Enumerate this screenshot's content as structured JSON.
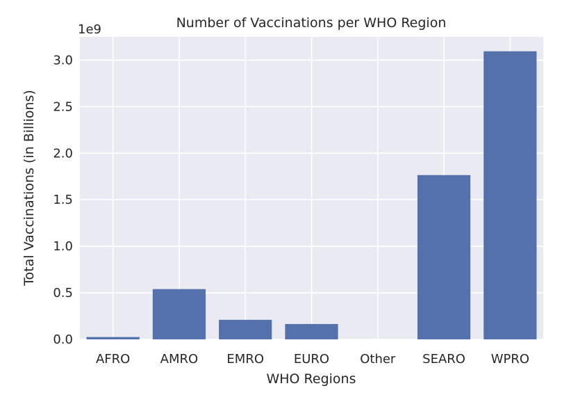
{
  "chart_data": {
    "type": "bar",
    "title": "Number of Vaccinations per WHO Region",
    "xlabel": "WHO Regions",
    "ylabel": "Total Vaccinations (in Billions)",
    "offset_label": "1e9",
    "categories": [
      "AFRO",
      "AMRO",
      "EMRO",
      "EURO",
      "Other",
      "SEARO",
      "WPRO"
    ],
    "values": [
      25000000,
      540000000,
      210000000,
      165000000,
      0,
      1765000000,
      3095000000
    ],
    "ylim": [
      0,
      3250000000
    ],
    "yticks": [
      0,
      500000000,
      1000000000,
      1500000000,
      2000000000,
      2500000000,
      3000000000
    ],
    "ytick_labels": [
      "0.0",
      "0.5",
      "1.0",
      "1.5",
      "2.0",
      "2.5",
      "3.0"
    ],
    "grid": true,
    "colors": {
      "bar": "#5471ab",
      "plot_background": "#eaeaf2",
      "grid": "#ffffff",
      "text": "#262626"
    }
  }
}
